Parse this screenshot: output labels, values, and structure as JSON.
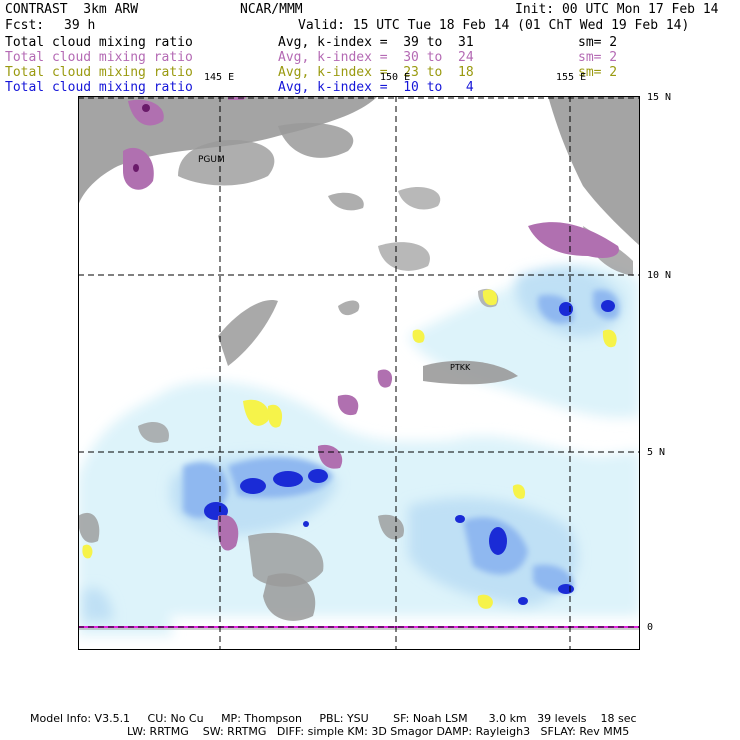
{
  "header": {
    "model": "CONTRAST  3km ARW",
    "org": "NCAR/MMM",
    "init": "Init: 00 UTC Mon 17 Feb 14",
    "fcst_label": "Fcst:",
    "fcst_value": "39 h",
    "valid": "Valid: 15 UTC Tue 18 Feb 14 (01 ChT Wed 19 Feb 14)"
  },
  "legend": [
    {
      "field": "Total cloud mixing ratio",
      "avg": "Avg, k-index =  39 to  31",
      "sm": "sm= 2",
      "color": "#000000"
    },
    {
      "field": "Total cloud mixing ratio",
      "avg": "Avg, k-index =  30 to  24",
      "sm": "sm= 2",
      "color": "#b46ab4"
    },
    {
      "field": "Total cloud mixing ratio",
      "avg": "Avg, k-index =  23 to  18",
      "sm": "sm= 2",
      "color": "#9a9a10"
    },
    {
      "field": "Total cloud mixing ratio",
      "avg": "Avg, k-index =  10 to   4",
      "sm": "",
      "color": "#1616d8"
    }
  ],
  "map": {
    "lon_labels": [
      "145 E",
      "150 E",
      "155 E"
    ],
    "lat_labels": [
      "15 N",
      "10 N",
      "5 N",
      "0"
    ],
    "stations": [
      "PGUM",
      "PTKK"
    ]
  },
  "footer": {
    "line1": "Model Info: V3.5.1     CU: No Cu     MP: Thompson     PBL: YSU       SF: Noah LSM      3.0 km   39 levels    18 sec",
    "line2": "LW: RRTMG    SW: RRTMG   DIFF: simple KM: 3D Smagor DAMP: Rayleigh3   SFLAY: Rev MM5"
  }
}
